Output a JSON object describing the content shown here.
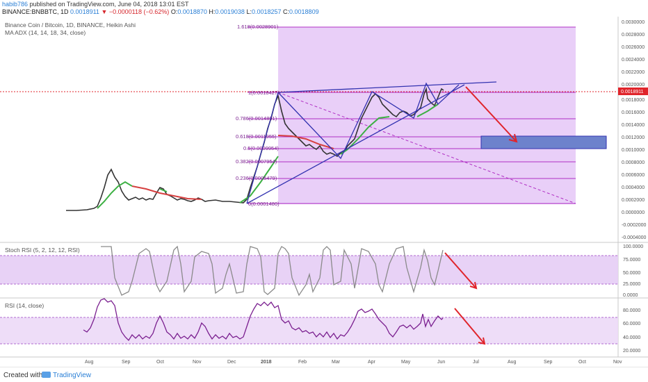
{
  "header": {
    "user": "habib786",
    "published": " published on TradingView.com, June 04, 2018 13:01 EST",
    "symbol": "BINANCE:BNBBTC, 1D",
    "last": "0.0018911",
    "change": "−0.0000118 (−0.62%)",
    "o_label": "O:",
    "o": "0.0018870",
    "h_label": "H:",
    "h": "0.0019038",
    "l_label": "L:",
    "l": "0.0018257",
    "c_label": "C:",
    "c": "0.0018809"
  },
  "legends": {
    "title": "Binance Coin / Bitcoin, 1D, BINANCE, Heikin Ashi",
    "ma_adx": "MA ADX (14, 14, 18, 34, close)",
    "stoch": "Stoch RSI (5, 2, 12, 12, RSI)",
    "rsi": "RSI (14, close)"
  },
  "price_axis": {
    "ticks": [
      "0.0030000",
      "0.0028000",
      "0.0026000",
      "0.0024000",
      "0.0022000",
      "0.0020000",
      "0.0018000",
      "0.0016000",
      "0.0014000",
      "0.0012000",
      "0.0010000",
      "0.0008000",
      "0.0006000",
      "0.0004000",
      "0.0002000",
      "0.0000000",
      "-0.0002000",
      "-0.0004000"
    ],
    "current_label": "0.0018911"
  },
  "stoch_axis": {
    "ticks": [
      "100.0000",
      "75.0000",
      "50.0000",
      "25.0000",
      "0.0000"
    ]
  },
  "rsi_axis": {
    "ticks": [
      "80.0000",
      "60.0000",
      "40.0000",
      "20.0000"
    ]
  },
  "time_axis": {
    "ticks": [
      "Aug",
      "Sep",
      "Oct",
      "Nov",
      "Dec",
      "2018",
      "Feb",
      "Mar",
      "Apr",
      "May",
      "Jun",
      "Jul",
      "Aug",
      "Sep",
      "Oct",
      "Nov"
    ]
  },
  "fib_labels": [
    "1.618(0.0028901)",
    "1(0.0018427)",
    "0.786(0.0014801)",
    "0.618(0.0011955)",
    "0.5(0.0009954)",
    "0.382(0.0007954)",
    "0.236(0.0005479)",
    "0(0.0001480)"
  ],
  "colors": {
    "fib_fill": "#d8a9f0",
    "fib_line": "#b02fc4",
    "wedge": "#3232b0",
    "target_box": "#4a6bc4",
    "arrow": "#e0242b",
    "price_line": "#e0242b",
    "rsi_line": "#7a1f8f",
    "stoch_line": "#7f7f7f",
    "band_fill": "#e6cdf5"
  },
  "footer": {
    "created": "Created with",
    "brand": "TradingView"
  }
}
